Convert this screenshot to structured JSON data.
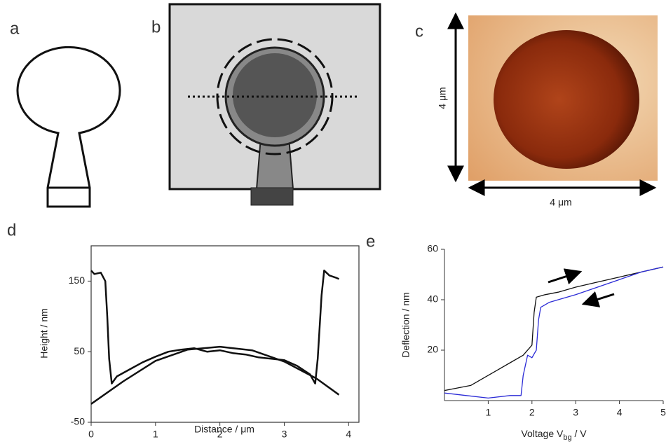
{
  "panels": {
    "a": "a",
    "b": "b",
    "c": "c",
    "d": "d",
    "e": "e"
  },
  "image_c": {
    "x_label": "4 μm",
    "y_label": "4 μm"
  },
  "chart_data": [
    {
      "type": "line",
      "xlabel": "Distance / μm",
      "ylabel": "Height / nm",
      "xlim": [
        0,
        4.16
      ],
      "xticks": [
        0,
        1,
        2,
        3,
        4
      ],
      "ylim": [
        -50,
        200
      ],
      "yticks": [
        -50,
        50,
        150
      ],
      "box": true,
      "series": [
        {
          "name": "profile",
          "color": "#111111",
          "x": [
            0,
            0.05,
            0.15,
            0.22,
            0.25,
            0.28,
            0.32,
            0.4,
            0.6,
            0.8,
            1.0,
            1.2,
            1.4,
            1.6,
            1.8,
            2.0,
            2.2,
            2.4,
            2.6,
            2.8,
            3.0,
            3.2,
            3.4,
            3.48,
            3.52,
            3.58,
            3.62,
            3.7,
            3.8,
            3.85
          ],
          "values": [
            165,
            160,
            162,
            150,
            100,
            40,
            5,
            15,
            25,
            35,
            43,
            50,
            53,
            55,
            50,
            52,
            48,
            46,
            42,
            40,
            38,
            30,
            18,
            5,
            40,
            130,
            165,
            158,
            155,
            153
          ]
        },
        {
          "name": "fit",
          "color": "#111111",
          "x": [
            0,
            0.5,
            1,
            1.5,
            2,
            2.5,
            3,
            3.5,
            3.85
          ],
          "values": [
            -24,
            8,
            37,
            53,
            57,
            52,
            36,
            12,
            -11
          ]
        }
      ]
    },
    {
      "type": "line",
      "xlabel": {
        "main": "Voltage V",
        "sub": "bg",
        "tail": " / V"
      },
      "ylabel": "Deflection / nm",
      "xlim": [
        0,
        5
      ],
      "xticks": [
        1,
        2,
        3,
        4,
        5
      ],
      "ylim": [
        0,
        60
      ],
      "yticks": [
        20,
        40,
        60
      ],
      "box": false,
      "series": [
        {
          "name": "sweep up",
          "color": "#111111",
          "x": [
            0,
            0.3,
            0.6,
            0.9,
            1.2,
            1.5,
            1.8,
            2.0,
            2.05,
            2.1,
            2.3,
            2.6,
            3,
            3.5,
            4,
            4.5,
            5
          ],
          "values": [
            4,
            5,
            6,
            9,
            12,
            15,
            18,
            22,
            35,
            41,
            42,
            43,
            45,
            47,
            49,
            51,
            53
          ]
        },
        {
          "name": "sweep down",
          "color": "#2b2bd6",
          "x": [
            0,
            0.5,
            1,
            1.5,
            1.75,
            1.8,
            1.9,
            2.0,
            2.1,
            2.15,
            2.2,
            2.4,
            2.6,
            3,
            3.5,
            4,
            4.5,
            5
          ],
          "values": [
            3,
            2,
            1,
            2,
            2,
            10,
            18,
            17,
            20,
            32,
            37,
            39,
            40,
            42,
            45,
            48,
            51,
            53
          ]
        }
      ]
    }
  ]
}
